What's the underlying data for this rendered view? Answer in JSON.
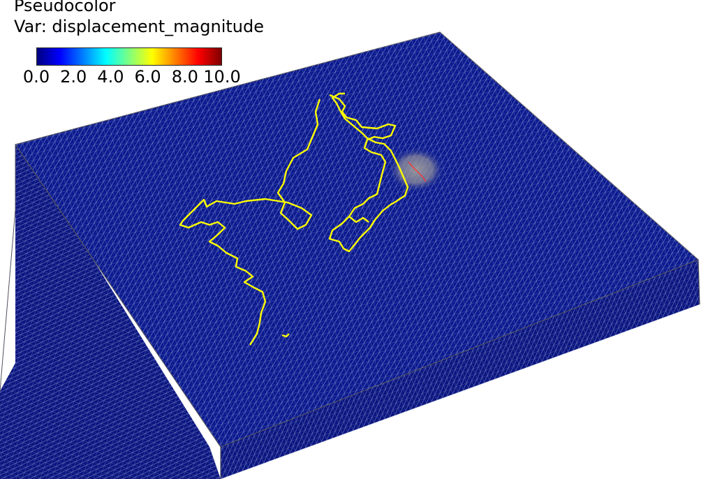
{
  "legend": {
    "title": "Pseudocolor",
    "variable_line": "Var: displacement_magnitude",
    "ticks": [
      "0.0",
      "2.0",
      "4.0",
      "6.0",
      "8.0",
      "10.0"
    ],
    "range": [
      0.0,
      10.0
    ],
    "colormap": [
      "#00007f",
      "#0000ff",
      "#007fff",
      "#00ffff",
      "#7fff7f",
      "#ffff00",
      "#ff7f00",
      "#ff0000",
      "#7f0000"
    ]
  },
  "mesh": {
    "top_color": "#0b1a8f",
    "wire_color": "#b4c0e6",
    "side_color": "#0a1580",
    "coastline_color": "#ffff00",
    "hotspot_color": "#9a9a9a",
    "hotspot_peak_color": "#ff2020"
  }
}
